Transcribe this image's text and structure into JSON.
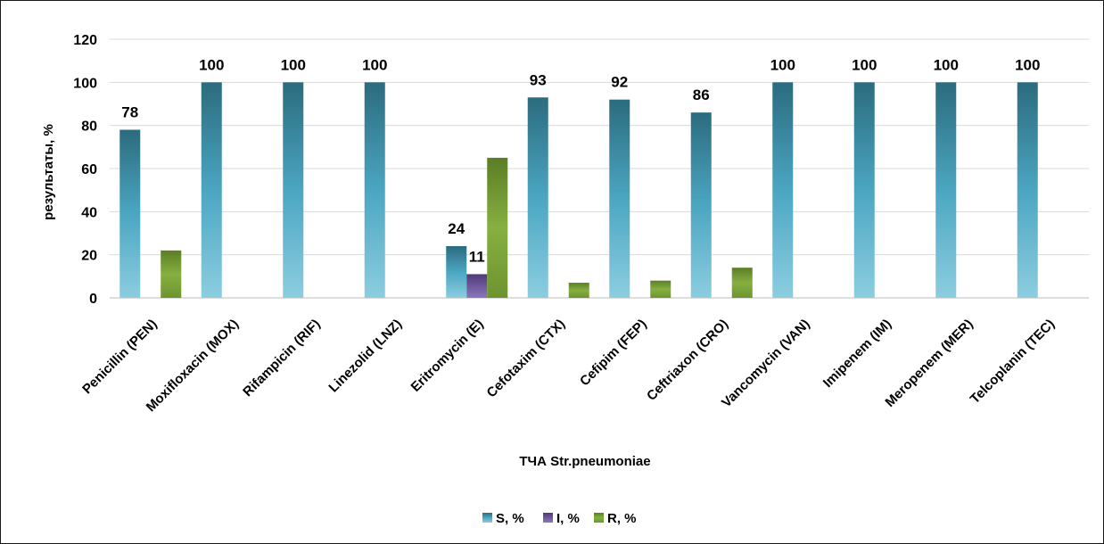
{
  "chart_data": {
    "type": "bar",
    "title": "",
    "xlabel": "ТЧА Str.pneumoniae",
    "ylabel": "результаты, %",
    "ylim": [
      0,
      120
    ],
    "yticks": [
      0,
      20,
      40,
      60,
      80,
      100,
      120
    ],
    "grid": true,
    "legend_position": "bottom",
    "categories": [
      "Penicillin (PEN)",
      "Moxifloxacin (MOX)",
      "Rifampicin (RIF)",
      "Linezolid (LNZ)",
      "Eritromycin (E)",
      "Cefotaxim (CTX)",
      "Cefipim (FEP)",
      "Ceftriaxon (CRO)",
      "Vancomycin (VAN)",
      "Imipenem (IM)",
      "Meropenem (MER)",
      "Telcoplanin (TEC)"
    ],
    "series": [
      {
        "name": "S, %",
        "color": "#4fa8c4",
        "values": [
          78,
          100,
          100,
          100,
          24,
          93,
          92,
          86,
          100,
          100,
          100,
          100
        ],
        "labels": [
          "78",
          "100",
          "100",
          "100",
          "24",
          "93",
          "92",
          "86",
          "100",
          "100",
          "100",
          "100"
        ]
      },
      {
        "name": "I, %",
        "color": "#7b5ea7",
        "values": [
          0,
          0,
          0,
          0,
          11,
          0,
          0,
          0,
          0,
          0,
          0,
          0
        ],
        "labels": [
          "",
          "",
          "",
          "",
          "11",
          "",
          "",
          "",
          "",
          "",
          "",
          ""
        ]
      },
      {
        "name": "R, %",
        "color": "#7fa93a",
        "values": [
          22,
          0,
          0,
          0,
          65,
          7,
          8,
          14,
          0,
          0,
          0,
          0
        ],
        "labels": [
          "",
          "",
          "",
          "",
          "",
          "",
          "",
          "",
          "",
          "",
          "",
          ""
        ]
      }
    ]
  }
}
